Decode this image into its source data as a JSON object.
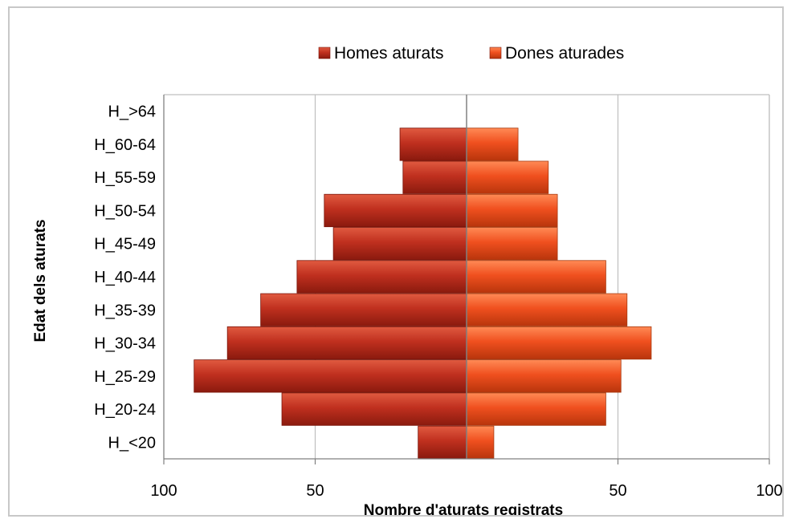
{
  "chart_data": {
    "type": "bar",
    "orientation": "horizontal",
    "layout": "population-pyramid",
    "categories": [
      "H_<20",
      "H_20-24",
      "H_25-29",
      "H_30-34",
      "H_35-39",
      "H_40-44",
      "H_45-49",
      "H_50-54",
      "H_55-59",
      "H_60-64",
      "H_>64"
    ],
    "series": [
      {
        "name": "Homes aturats",
        "side": "left",
        "color": "#c0301f",
        "values": [
          16,
          61,
          90,
          79,
          68,
          56,
          44,
          47,
          21,
          22,
          0
        ]
      },
      {
        "name": "Dones aturades",
        "side": "right",
        "color": "#f0501f",
        "values": [
          9,
          46,
          51,
          61,
          53,
          46,
          30,
          30,
          27,
          17,
          0
        ]
      }
    ],
    "xlabel": "Nombre d'aturats registrats",
    "ylabel": "Edat dels aturats",
    "xlim": [
      -100,
      100
    ],
    "x_ticks": [
      {
        "value": -100,
        "label": "100"
      },
      {
        "value": -50,
        "label": "50"
      },
      {
        "value": 50,
        "label": "50"
      },
      {
        "value": 100,
        "label": "100"
      }
    ],
    "grid": "vertical",
    "legend_position": "top"
  }
}
